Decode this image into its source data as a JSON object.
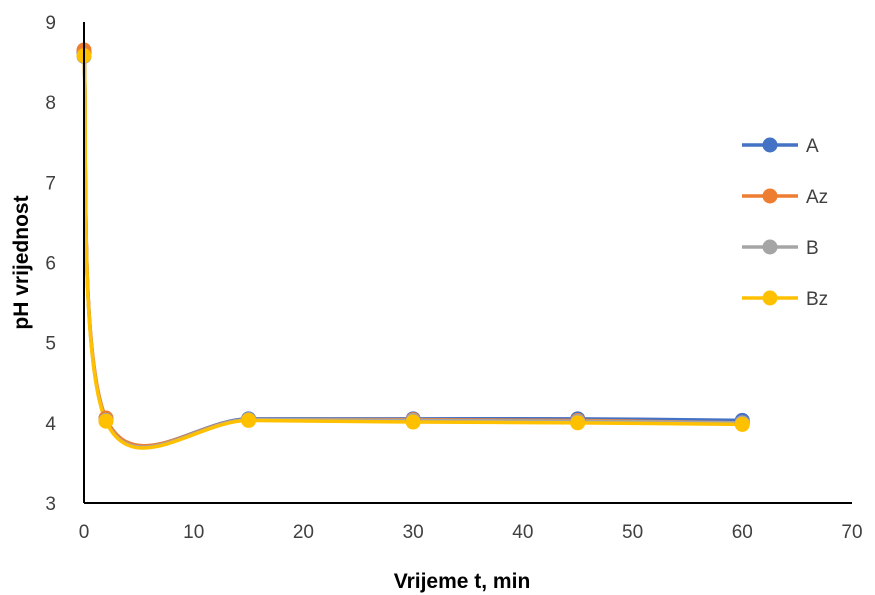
{
  "chart_data": {
    "type": "scatter",
    "title": "",
    "xlabel": "Vrijeme t, min",
    "ylabel": "pH vrijednost",
    "xlim": [
      0,
      70
    ],
    "ylim": [
      3,
      9
    ],
    "xticks": [
      0,
      10,
      20,
      30,
      40,
      50,
      60,
      70
    ],
    "yticks": [
      3,
      4,
      5,
      6,
      7,
      8,
      9
    ],
    "grid": false,
    "smooth_lines": true,
    "legend_position": "right",
    "x": [
      0,
      2,
      15,
      30,
      45,
      60
    ],
    "series": [
      {
        "name": "A",
        "color": "#4472C4",
        "values": [
          8.62,
          4.05,
          4.05,
          4.05,
          4.05,
          4.03
        ]
      },
      {
        "name": "Az",
        "color": "#ED7D31",
        "values": [
          8.65,
          4.06,
          4.04,
          4.04,
          4.03,
          4.0
        ]
      },
      {
        "name": "B",
        "color": "#A5A5A5",
        "values": [
          8.57,
          4.03,
          4.04,
          4.03,
          4.02,
          4.0
        ]
      },
      {
        "name": "Bz",
        "color": "#FFC000",
        "values": [
          8.58,
          4.02,
          4.03,
          4.01,
          4.0,
          3.98
        ]
      }
    ]
  }
}
